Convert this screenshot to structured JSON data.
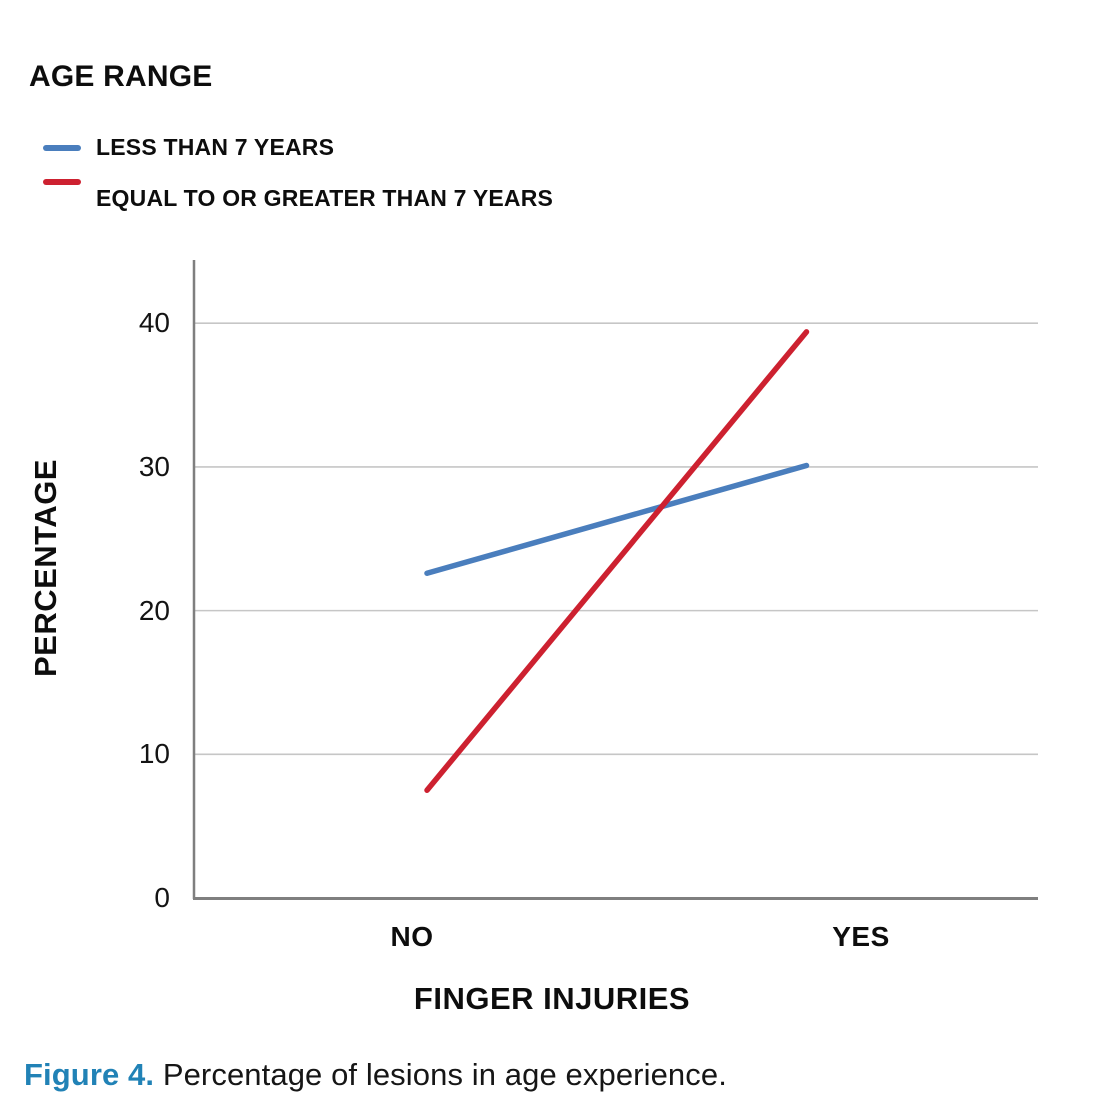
{
  "legend": {
    "title": "AGE RANGE",
    "items": [
      {
        "label": "LESS THAN 7 YEARS",
        "color": "#4A7EBD"
      },
      {
        "label": "EQUAL TO OR GREATER THAN 7 YEARS",
        "color": "#CD2130"
      }
    ]
  },
  "chart_data": {
    "type": "line",
    "categories": [
      "NO",
      "YES"
    ],
    "series": [
      {
        "name": "LESS THAN 7 YEARS",
        "color": "#4A7EBD",
        "values": [
          22.6,
          30.1
        ]
      },
      {
        "name": "EQUAL TO OR GREATER THAN 7 YEARS",
        "color": "#CD2130",
        "values": [
          7.5,
          39.4
        ]
      }
    ],
    "title": "",
    "xlabel": "FINGER INJURIES",
    "ylabel": "PERCENTAGE",
    "ylim": [
      0,
      44.4
    ],
    "yticks": [
      0,
      10,
      20,
      30,
      40
    ],
    "grid": "horizontal",
    "legend_position": "top-left",
    "colors": {
      "gridline": "#C6C6C6",
      "axis": "#7F7F7F",
      "text": "#121212"
    }
  },
  "caption": {
    "label": "Figure 4.",
    "text": "Percentage of lesions in age experience.",
    "accent_color": "#2182B6"
  }
}
